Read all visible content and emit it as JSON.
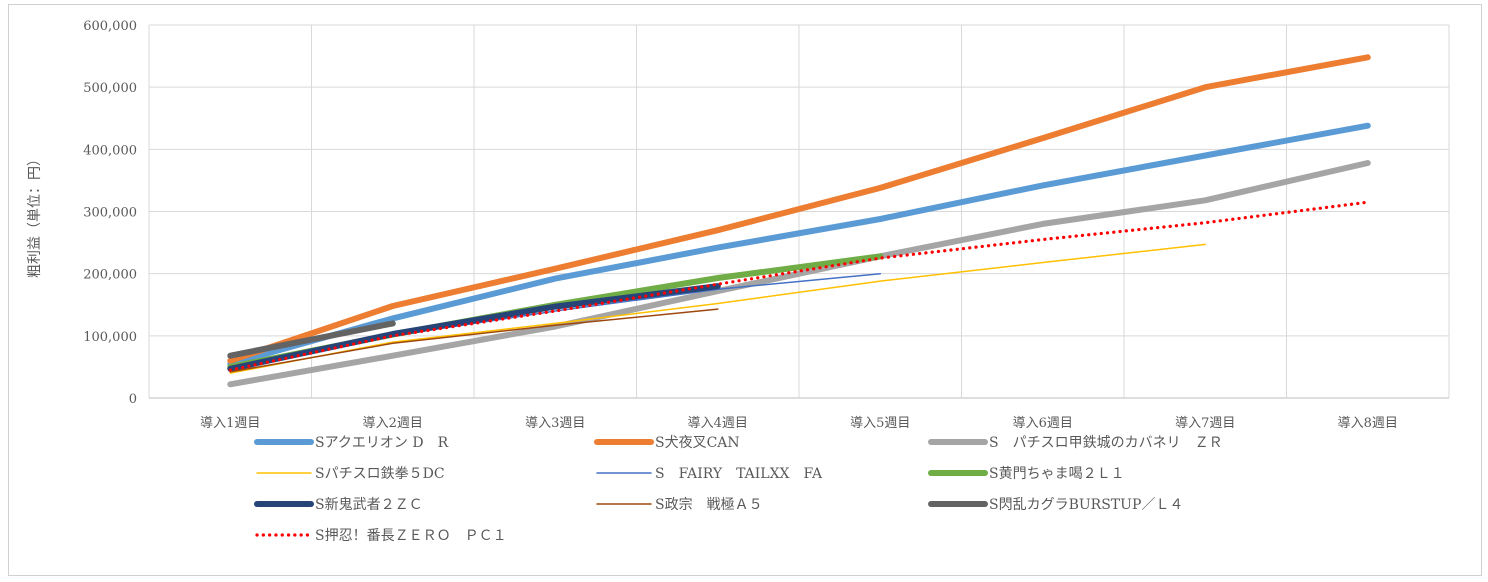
{
  "chart_data": {
    "type": "line",
    "title": "",
    "xlabel": "",
    "ylabel": "粗利益（単位：円）",
    "ylim": [
      0,
      600000
    ],
    "yticks": [
      0,
      100000,
      200000,
      300000,
      400000,
      500000,
      600000
    ],
    "ytick_labels": [
      "0",
      "100,000",
      "200,000",
      "300,000",
      "400,000",
      "500,000",
      "600,000"
    ],
    "grid": true,
    "legend_position": "bottom",
    "categories": [
      "導入1週目",
      "導入2週目",
      "導入3週目",
      "導入4週目",
      "導入5週目",
      "導入6週目",
      "導入7週目",
      "導入8週目"
    ],
    "series": [
      {
        "name": "Sアクエリオン D　R",
        "color": "#5b9bd5",
        "style": "thick",
        "values": [
          55000,
          128000,
          192000,
          242000,
          288000,
          342000,
          390000,
          438000
        ]
      },
      {
        "name": "S犬夜叉CAN",
        "color": "#ed7d31",
        "style": "thick",
        "values": [
          60000,
          148000,
          208000,
          270000,
          338000,
          418000,
          500000,
          548000
        ]
      },
      {
        "name": "S　パチスロ甲鉄城のカバネリ　ＺＲ",
        "color": "#a5a5a5",
        "style": "thick",
        "values": [
          22000,
          68000,
          115000,
          172000,
          228000,
          280000,
          318000,
          378000
        ]
      },
      {
        "name": "Sパチスロ鉄拳５DC",
        "color": "#ffc000",
        "style": "thin",
        "values": [
          40000,
          90000,
          120000,
          152000,
          188000,
          218000,
          247000,
          null
        ]
      },
      {
        "name": "S　FAIRY　TAILXX　FA",
        "color": "#4472c4",
        "style": "thin",
        "values": [
          45000,
          100000,
          140000,
          175000,
          200000,
          null,
          null,
          null
        ]
      },
      {
        "name": "S黄門ちゃま喝２Ｌ１",
        "color": "#70ad47",
        "style": "thick",
        "values": [
          50000,
          102000,
          150000,
          193000,
          228000,
          null,
          null,
          null
        ]
      },
      {
        "name": "S新鬼武者２ＺＣ",
        "color": "#264478",
        "style": "thick",
        "values": [
          47000,
          103000,
          147000,
          180000,
          null,
          null,
          null,
          null
        ]
      },
      {
        "name": "S政宗　戦極Ａ５",
        "color": "#9e480e",
        "style": "thin",
        "values": [
          42000,
          88000,
          117000,
          143000,
          null,
          null,
          null,
          null
        ]
      },
      {
        "name": "S閃乱カグラBURSTUP／Ｌ４",
        "color": "#636363",
        "style": "thick",
        "values": [
          68000,
          120000,
          null,
          null,
          null,
          null,
          null,
          null
        ]
      },
      {
        "name": "S押忍！番長ＺＥＲＯ　ＰＣ１",
        "color": "#ff0000",
        "style": "dotted",
        "values": [
          45000,
          100000,
          140000,
          183000,
          225000,
          255000,
          282000,
          315000
        ]
      }
    ]
  }
}
